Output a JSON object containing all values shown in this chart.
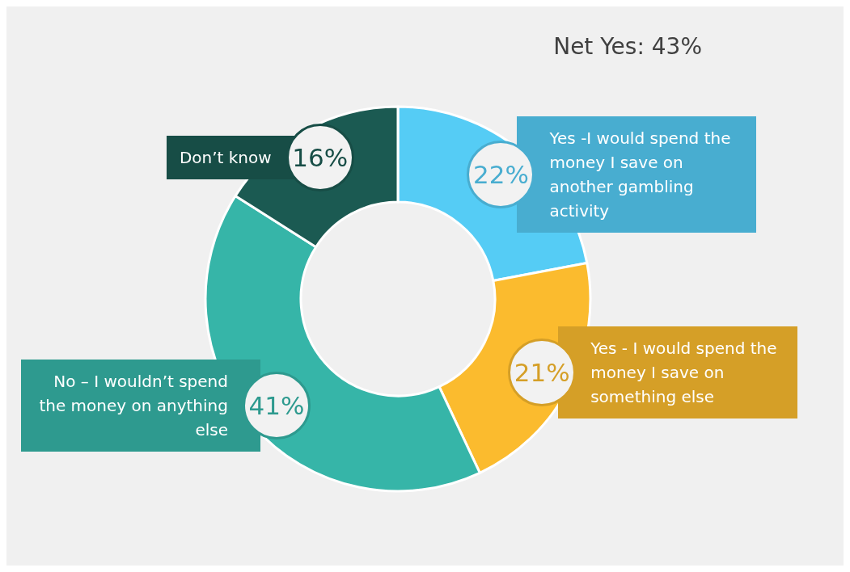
{
  "chart_data": {
    "type": "donut",
    "title": "Net Yes: 43%",
    "categories": [
      "Yes -I would spend the money I save on another gambling activity",
      "Yes - I would spend the money I save on something else",
      "No – I wouldn’t spend the money on anything else",
      "Don’t know"
    ],
    "values": [
      22,
      21,
      41,
      16
    ],
    "value_labels": [
      "22%",
      "21%",
      "41%",
      "16%"
    ],
    "colors": [
      "#55ccf5",
      "#fbbb2e",
      "#36b5a8",
      "#1b5a52"
    ],
    "legend": false
  }
}
